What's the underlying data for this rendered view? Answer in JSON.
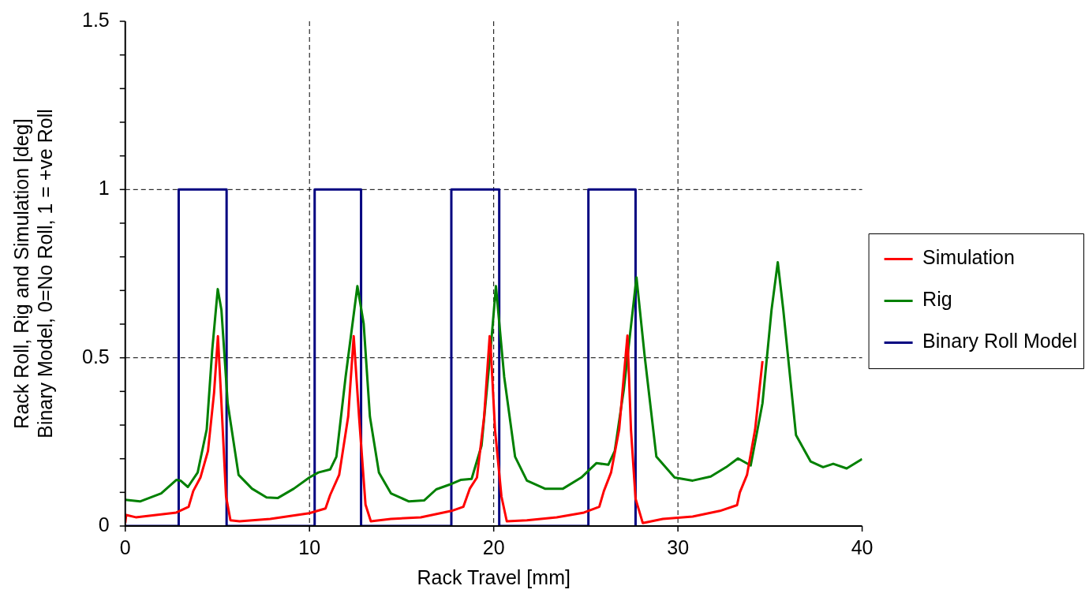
{
  "chart_data": {
    "type": "line",
    "xlabel": "Rack Travel [mm]",
    "ylabel": "Rack Roll, Rig and Simulation [deg]\nBinary Model, 0=No Roll, 1 = +ve Roll",
    "xlim": [
      0,
      40
    ],
    "xticks": [
      0,
      10,
      20,
      30,
      40
    ],
    "ylim": [
      0,
      1.5
    ],
    "yticks": [
      0,
      {
        "value": 0.1,
        "label": null
      },
      {
        "value": 0.2,
        "label": null
      },
      {
        "value": 0.3,
        "label": null
      },
      {
        "value": 0.4,
        "label": null
      },
      0.5,
      {
        "value": 0.6,
        "label": null
      },
      {
        "value": 0.7,
        "label": null
      },
      {
        "value": 0.8,
        "label": null
      },
      {
        "value": 0.9,
        "label": null
      },
      1,
      {
        "value": 1.1,
        "label": null
      },
      {
        "value": 1.2,
        "label": null
      },
      {
        "value": 1.3,
        "label": null
      },
      {
        "value": 1.4,
        "label": null
      },
      1.5
    ],
    "grid": true,
    "legend": "right",
    "marker": "none",
    "line_style": "solid",
    "series": [
      {
        "name": "Simulation",
        "color": "#ff0000",
        "x": [
          0,
          0.05,
          0.57,
          2.77,
          3.44,
          3.69,
          4.08,
          4.49,
          4.82,
          5.03,
          5.22,
          5.47,
          5.71,
          6.2,
          7.87,
          9.99,
          10.87,
          11.12,
          11.61,
          12.1,
          12.4,
          12.69,
          13.04,
          13.33,
          14.42,
          16.04,
          17.71,
          18.35,
          18.7,
          19.09,
          19.48,
          19.78,
          19.83,
          20.07,
          20.42,
          20.71,
          21.8,
          23.42,
          24.9,
          25.73,
          25.98,
          26.37,
          26.81,
          27.06,
          27.26,
          27.45,
          27.7,
          28.09,
          29.18,
          30.8,
          32.28,
          33.21,
          33.36,
          33.75,
          34.19,
          34.59
        ],
        "values": [
          0.009,
          0.033,
          0.026,
          0.04,
          0.057,
          0.104,
          0.144,
          0.223,
          0.396,
          0.564,
          0.365,
          0.088,
          0.017,
          0.014,
          0.021,
          0.038,
          0.052,
          0.092,
          0.152,
          0.325,
          0.564,
          0.325,
          0.064,
          0.014,
          0.021,
          0.026,
          0.045,
          0.057,
          0.111,
          0.144,
          0.325,
          0.564,
          0.538,
          0.287,
          0.088,
          0.014,
          0.017,
          0.026,
          0.04,
          0.057,
          0.104,
          0.159,
          0.287,
          0.443,
          0.566,
          0.287,
          0.081,
          0.009,
          0.021,
          0.028,
          0.045,
          0.062,
          0.1,
          0.152,
          0.287,
          0.49
        ]
      },
      {
        "name": "Rig",
        "color": "#008000",
        "x": [
          0,
          0.8,
          1.95,
          2.77,
          3.0,
          3.4,
          3.93,
          4.42,
          4.72,
          5.02,
          5.22,
          5.56,
          6.15,
          6.88,
          7.67,
          8.27,
          9.15,
          9.99,
          10.48,
          11.12,
          11.46,
          11.96,
          12.6,
          12.94,
          13.28,
          13.77,
          14.42,
          15.4,
          16.22,
          16.88,
          17.6,
          18.2,
          18.8,
          19.34,
          19.83,
          20.12,
          20.57,
          21.16,
          21.8,
          22.78,
          23.76,
          24.75,
          25.58,
          26.22,
          26.57,
          27.06,
          27.75,
          28.19,
          28.83,
          29.82,
          30.8,
          31.78,
          32.62,
          33.26,
          33.95,
          34.59,
          35.08,
          35.42,
          35.72,
          36.41,
          37.2,
          37.88,
          38.43,
          39.16,
          40
        ],
        "values": [
          0.078,
          0.073,
          0.097,
          0.137,
          0.135,
          0.116,
          0.159,
          0.287,
          0.523,
          0.704,
          0.642,
          0.365,
          0.152,
          0.111,
          0.085,
          0.083,
          0.111,
          0.144,
          0.159,
          0.168,
          0.206,
          0.443,
          0.713,
          0.602,
          0.325,
          0.159,
          0.097,
          0.073,
          0.076,
          0.109,
          0.123,
          0.137,
          0.14,
          0.239,
          0.523,
          0.713,
          0.443,
          0.206,
          0.135,
          0.111,
          0.111,
          0.144,
          0.187,
          0.182,
          0.223,
          0.405,
          0.739,
          0.507,
          0.206,
          0.144,
          0.135,
          0.147,
          0.175,
          0.201,
          0.18,
          0.365,
          0.642,
          0.784,
          0.642,
          0.27,
          0.192,
          0.175,
          0.185,
          0.171,
          0.199
        ]
      },
      {
        "name": "Binary Roll Model",
        "type": "step",
        "color": "#000080",
        "x": [
          0,
          2.9,
          5.5,
          10.28,
          12.8,
          17.7,
          20.3,
          25.14,
          27.7
        ],
        "values": [
          0,
          1,
          0,
          1,
          0,
          1,
          0,
          1,
          0
        ]
      }
    ]
  }
}
